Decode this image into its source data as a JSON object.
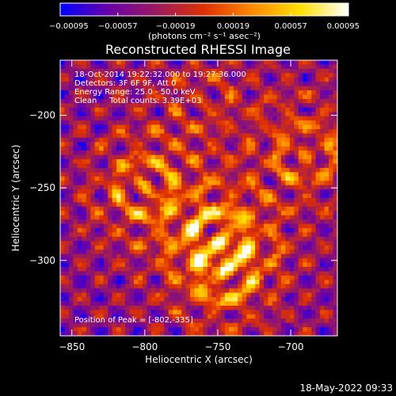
{
  "chart_data": {
    "type": "heatmap",
    "title": "Reconstructed RHESSI Image",
    "xlabel": "Heliocentric X (arcsec)",
    "ylabel": "Heliocentric Y (arcsec)",
    "xlim": [
      -858,
      -668
    ],
    "ylim": [
      -352,
      -162
    ],
    "x_ticks": [
      -850,
      -800,
      -750,
      -700
    ],
    "y_ticks": [
      -200,
      -250,
      -300
    ],
    "colorbar": {
      "range": [
        -0.00095,
        0.00095
      ],
      "tick_values": [
        -0.00095,
        -0.00057,
        -0.00019,
        0.00019,
        0.00057,
        0.00095
      ],
      "tick_labels": [
        "-0.00095",
        "-0.00057",
        "-0.00019",
        "0.00019",
        "0.00057",
        "0.00095"
      ],
      "units_label": "(photons cm⁻² s⁻¹ asec⁻²)",
      "colors": [
        "#0000ff",
        "#6a00aa",
        "#9a1a60",
        "#e03000",
        "#ff8a00",
        "#ffe000",
        "#ffffff"
      ]
    },
    "annotations": {
      "line1": "18-Oct-2014 19:22:32.000 to 19:27:36.000",
      "line2": "Detectors: 3F 6F 9F, Att 0",
      "line3": "Energy Range: 25.0 - 50.0 keV",
      "line4": "Clean     Total counts: 3.39E+03",
      "peak": "Position of Peak = [-802,-335]"
    },
    "sources": [
      {
        "x": -800,
        "y": -250,
        "amplitude": 1.0
      },
      {
        "x": -748,
        "y": -285,
        "amplitude": 1.1
      },
      {
        "x": -745,
        "y": -310,
        "amplitude": 0.9
      },
      {
        "x": -690,
        "y": -225,
        "amplitude": 0.9
      },
      {
        "x": -760,
        "y": -190,
        "amplitude": 0.5
      }
    ],
    "peak_position": [
      -802,
      -335
    ]
  },
  "footer": {
    "timestamp": "18-May-2022 09:33"
  }
}
